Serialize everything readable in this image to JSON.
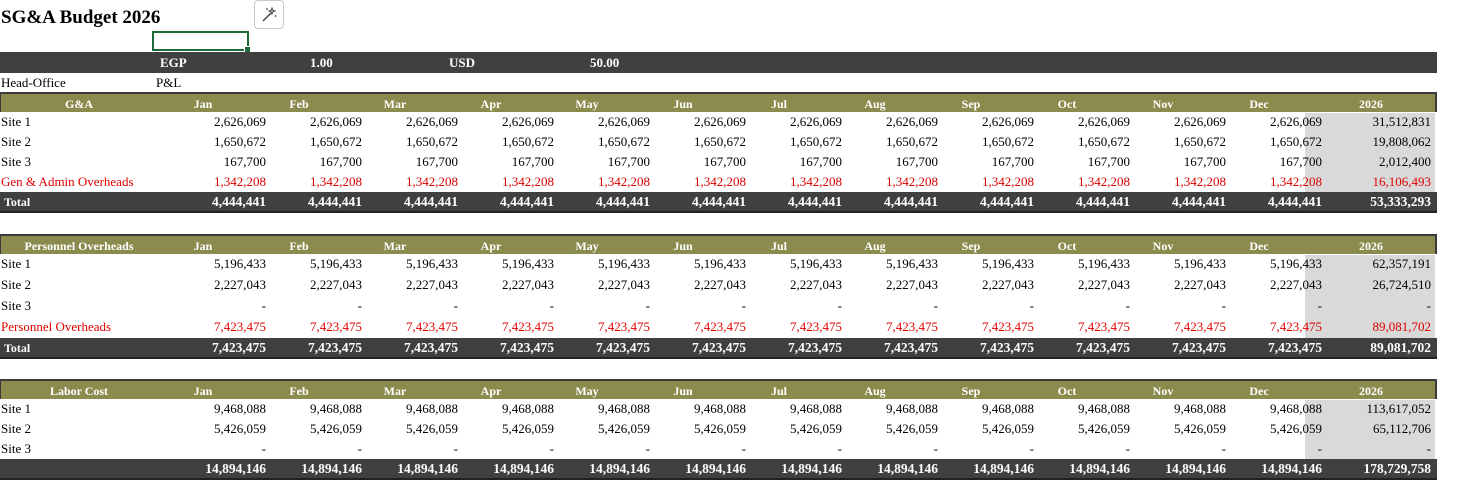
{
  "title": "SG&A Budget 2026",
  "currency_bar": {
    "cur1": "EGP",
    "rate1": "1.00",
    "cur2": "USD",
    "rate2": "50.00"
  },
  "labels": {
    "office": "Head-Office",
    "statement": "P&L"
  },
  "months": [
    "Jan",
    "Feb",
    "Mar",
    "Apr",
    "May",
    "Jun",
    "Jul",
    "Aug",
    "Sep",
    "Oct",
    "Nov",
    "Dec",
    "2026"
  ],
  "ga": {
    "header": "G&A",
    "rows": [
      {
        "label": "Site 1",
        "vals": [
          "2,626,069",
          "2,626,069",
          "2,626,069",
          "2,626,069",
          "2,626,069",
          "2,626,069",
          "2,626,069",
          "2,626,069",
          "2,626,069",
          "2,626,069",
          "2,626,069",
          "2,626,069",
          "31,512,831"
        ]
      },
      {
        "label": "Site 2",
        "vals": [
          "1,650,672",
          "1,650,672",
          "1,650,672",
          "1,650,672",
          "1,650,672",
          "1,650,672",
          "1,650,672",
          "1,650,672",
          "1,650,672",
          "1,650,672",
          "1,650,672",
          "1,650,672",
          "19,808,062"
        ]
      },
      {
        "label": "Site 3",
        "vals": [
          "167,700",
          "167,700",
          "167,700",
          "167,700",
          "167,700",
          "167,700",
          "167,700",
          "167,700",
          "167,700",
          "167,700",
          "167,700",
          "167,700",
          "2,012,400"
        ]
      },
      {
        "label": "Gen & Admin  Overheads",
        "vals": [
          "1,342,208",
          "1,342,208",
          "1,342,208",
          "1,342,208",
          "1,342,208",
          "1,342,208",
          "1,342,208",
          "1,342,208",
          "1,342,208",
          "1,342,208",
          "1,342,208",
          "1,342,208",
          "16,106,493"
        ]
      }
    ],
    "total": {
      "label": "Total",
      "vals": [
        "4,444,441",
        "4,444,441",
        "4,444,441",
        "4,444,441",
        "4,444,441",
        "4,444,441",
        "4,444,441",
        "4,444,441",
        "4,444,441",
        "4,444,441",
        "4,444,441",
        "4,444,441",
        "53,333,293"
      ]
    }
  },
  "personnel": {
    "header": "Personnel Overheads",
    "rows": [
      {
        "label": "Site 1",
        "vals": [
          "5,196,433",
          "5,196,433",
          "5,196,433",
          "5,196,433",
          "5,196,433",
          "5,196,433",
          "5,196,433",
          "5,196,433",
          "5,196,433",
          "5,196,433",
          "5,196,433",
          "5,196,433",
          "62,357,191"
        ]
      },
      {
        "label": "Site 2",
        "vals": [
          "2,227,043",
          "2,227,043",
          "2,227,043",
          "2,227,043",
          "2,227,043",
          "2,227,043",
          "2,227,043",
          "2,227,043",
          "2,227,043",
          "2,227,043",
          "2,227,043",
          "2,227,043",
          "26,724,510"
        ]
      },
      {
        "label": "Site 3",
        "vals": [
          "-",
          "-",
          "-",
          "-",
          "-",
          "-",
          "-",
          "-",
          "-",
          "-",
          "-",
          "-",
          "-"
        ]
      },
      {
        "label": "Personnel Overheads",
        "vals": [
          "7,423,475",
          "7,423,475",
          "7,423,475",
          "7,423,475",
          "7,423,475",
          "7,423,475",
          "7,423,475",
          "7,423,475",
          "7,423,475",
          "7,423,475",
          "7,423,475",
          "7,423,475",
          "89,081,702"
        ]
      }
    ],
    "total": {
      "label": "Total",
      "vals": [
        "7,423,475",
        "7,423,475",
        "7,423,475",
        "7,423,475",
        "7,423,475",
        "7,423,475",
        "7,423,475",
        "7,423,475",
        "7,423,475",
        "7,423,475",
        "7,423,475",
        "7,423,475",
        "89,081,702"
      ]
    }
  },
  "labor": {
    "header": "Labor Cost",
    "rows": [
      {
        "label": "Site 1",
        "vals": [
          "9,468,088",
          "9,468,088",
          "9,468,088",
          "9,468,088",
          "9,468,088",
          "9,468,088",
          "9,468,088",
          "9,468,088",
          "9,468,088",
          "9,468,088",
          "9,468,088",
          "9,468,088",
          "113,617,052"
        ]
      },
      {
        "label": "Site 2",
        "vals": [
          "5,426,059",
          "5,426,059",
          "5,426,059",
          "5,426,059",
          "5,426,059",
          "5,426,059",
          "5,426,059",
          "5,426,059",
          "5,426,059",
          "5,426,059",
          "5,426,059",
          "5,426,059",
          "65,112,706"
        ]
      },
      {
        "label": "Site 3",
        "vals": [
          "-",
          "-",
          "-",
          "-",
          "-",
          "-",
          "-",
          "-",
          "-",
          "-",
          "-",
          "-",
          "-"
        ]
      }
    ],
    "total": {
      "label": "",
      "vals": [
        "14,894,146",
        "14,894,146",
        "14,894,146",
        "14,894,146",
        "14,894,146",
        "14,894,146",
        "14,894,146",
        "14,894,146",
        "14,894,146",
        "14,894,146",
        "14,894,146",
        "14,894,146",
        "178,729,758"
      ]
    }
  },
  "colors": {
    "header_olive": "#8b8b4e",
    "total_dark": "#404040",
    "red_text": "#e00000",
    "year_col_bg": "#d9d9d9"
  }
}
